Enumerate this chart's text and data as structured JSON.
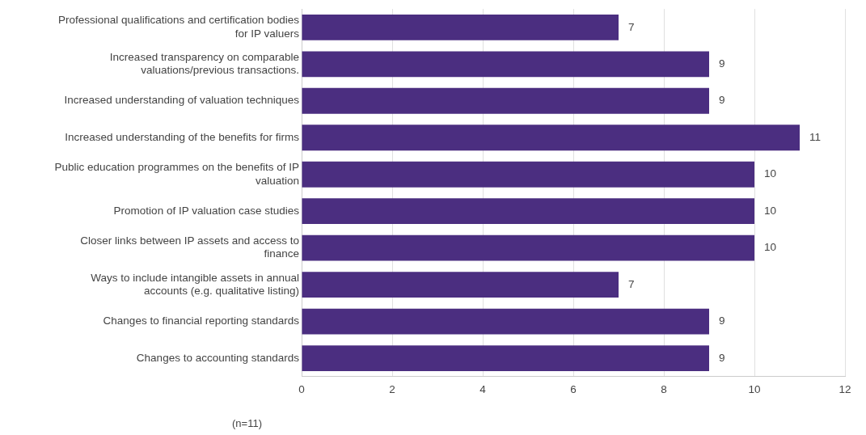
{
  "chart_data": {
    "type": "bar",
    "orientation": "horizontal",
    "categories": [
      "Professional qualifications and certification bodies for IP valuers",
      "Increased transparency on comparable valuations/previous transactions.",
      "Increased understanding of valuation techniques",
      "Increased understanding of the benefits for firms",
      "Public education programmes on the benefits of IP valuation",
      "Promotion of IP valuation case studies",
      "Closer links between IP assets and access to finance",
      "Ways to include intangible assets in annual accounts (e.g. qualitative listing)",
      "Changes to financial reporting standards",
      "Changes to accounting standards"
    ],
    "values": [
      7,
      9,
      9,
      11,
      10,
      10,
      10,
      7,
      9,
      9
    ],
    "color": "#4b2e80",
    "xlim": [
      0,
      12
    ],
    "xticks": [
      0,
      2,
      4,
      6,
      8,
      10,
      12
    ],
    "grid": "x",
    "legend": false,
    "data_labels": true,
    "annotations": [
      "(n=11)"
    ]
  }
}
